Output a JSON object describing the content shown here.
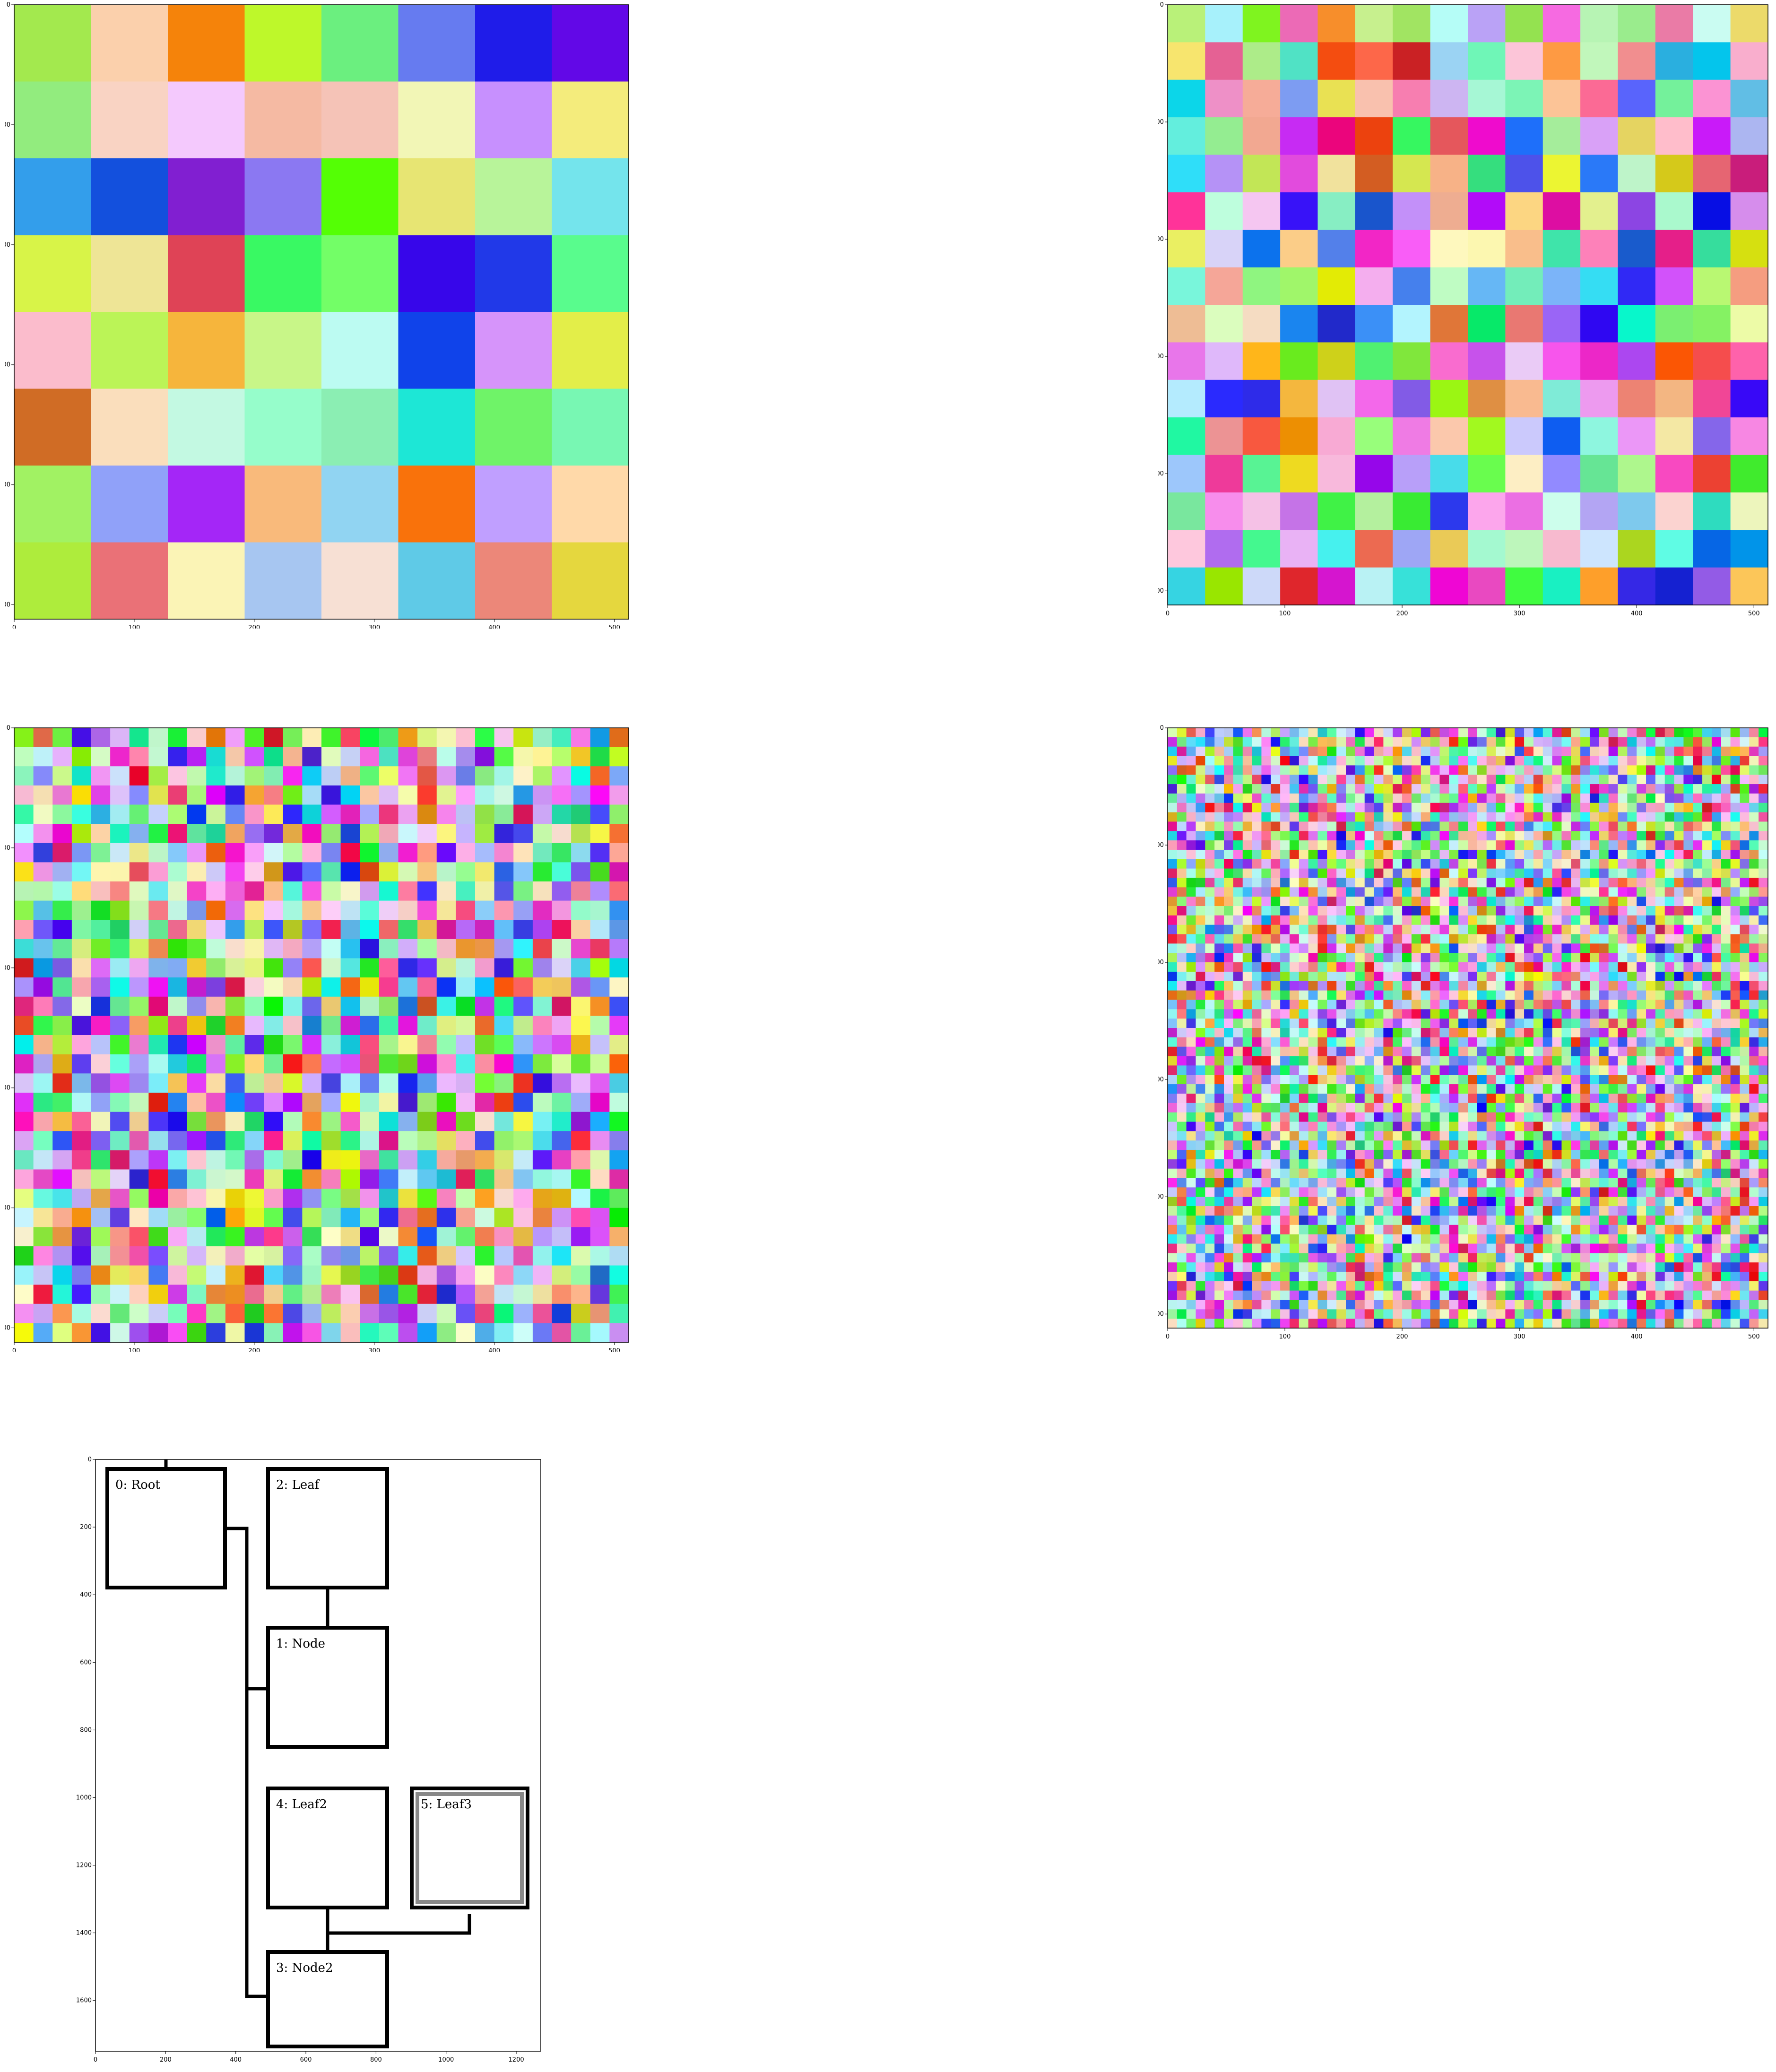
{
  "panels": [
    {
      "id": "level-0",
      "grid_div": 64,
      "seed": 11,
      "xticks": [
        "0",
        "100",
        "200",
        "300",
        "400",
        "500"
      ],
      "yticks": [
        "0",
        "100",
        "200",
        "300",
        "400",
        "500"
      ]
    },
    {
      "id": "level-1",
      "grid_div": 32,
      "seed": 23,
      "xticks": [
        "0",
        "100",
        "200",
        "300",
        "400",
        "500"
      ],
      "yticks": [
        "0",
        "100",
        "200",
        "300",
        "400",
        "500"
      ]
    },
    {
      "id": "level-2",
      "grid_div": 16,
      "seed": 37,
      "xticks": [
        "0",
        "100",
        "200",
        "300",
        "400",
        "500"
      ],
      "yticks": [
        "0",
        "100",
        "200",
        "300",
        "400",
        "500"
      ]
    },
    {
      "id": "level-3",
      "grid_div": 8,
      "seed": 41,
      "xticks": [
        "0",
        "100",
        "200",
        "300",
        "400",
        "500"
      ],
      "yticks": [
        "0",
        "100",
        "200",
        "300",
        "400",
        "500"
      ]
    }
  ],
  "tree": {
    "xticks": [
      "0",
      "200",
      "400",
      "600",
      "800",
      "1000",
      "1200"
    ],
    "yticks": [
      "0",
      "200",
      "400",
      "600",
      "800",
      "1000",
      "1200",
      "1400",
      "1600"
    ],
    "nodes": [
      {
        "id": "0",
        "label": "0: Root"
      },
      {
        "id": "2",
        "label": "2: Leaf"
      },
      {
        "id": "1",
        "label": "1: Node"
      },
      {
        "id": "4",
        "label": "4: Leaf2"
      },
      {
        "id": "5",
        "label": "5: Leaf3",
        "highlighted": true
      },
      {
        "id": "3",
        "label": "3: Node2"
      }
    ]
  }
}
